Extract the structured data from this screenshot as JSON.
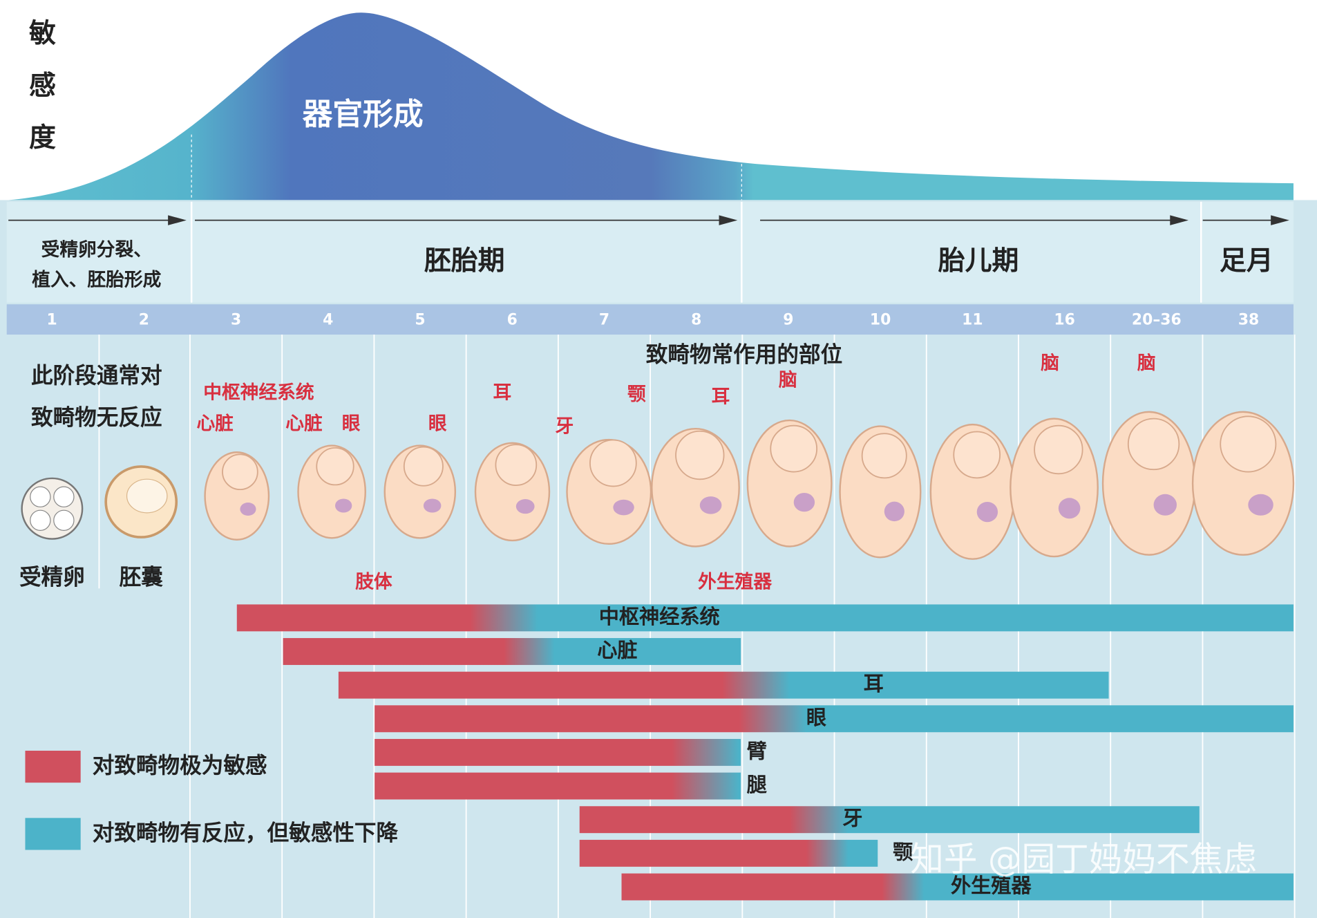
{
  "sensitivity_axis_label": "敏感度",
  "curve_label": "器官形成",
  "periods": [
    [
      "受精卵分裂、",
      "植入、胚胎形成"
    ],
    [
      "胚胎期"
    ],
    [
      "胎儿期"
    ],
    [
      "足月"
    ]
  ],
  "weeks": [
    "1",
    "2",
    "3",
    "4",
    "5",
    "6",
    "7",
    "8",
    "9",
    "10",
    "11",
    "16",
    "20–36",
    "38"
  ],
  "note": [
    "此阶段通常对",
    "致畸物无反应"
  ],
  "early_stages": [
    "受精卵",
    "胚囊"
  ],
  "sites_title": "致畸物常作用的部位",
  "sites": [
    "中枢神经系统",
    "心脏",
    "心脏",
    "眼",
    "眼",
    "耳",
    "牙",
    "颚",
    "耳",
    "脑",
    "脑",
    "脑",
    "肢体",
    "外生殖器"
  ],
  "organs": [
    "中枢神经系统",
    "心脏",
    "耳",
    "眼",
    "臂",
    "腿",
    "牙",
    "颚",
    "外生殖器"
  ],
  "legend": [
    "对致畸物极为敏感",
    "对致畸物有反应，但敏感性下降"
  ],
  "watermark": "知乎 @园丁妈妈不焦虑"
}
